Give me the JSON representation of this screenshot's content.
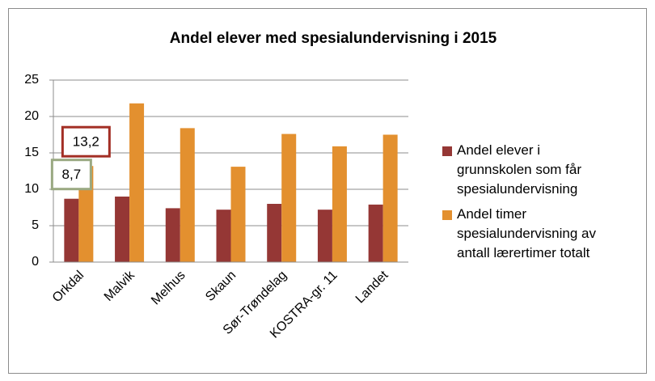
{
  "chart_data": {
    "type": "bar",
    "title": "Andel elever med spesialundervisning i 2015",
    "categories": [
      "Orkdal",
      "Malvik",
      "Melhus",
      "Skaun",
      "Sør-Trøndelag",
      "KOSTRA-gr. 11",
      "Landet"
    ],
    "series": [
      {
        "name": "Andel elever i grunnskolen som får spesialundervisning",
        "color": "#953735",
        "values": [
          8.7,
          9.0,
          7.4,
          7.2,
          8.0,
          7.2,
          7.9
        ],
        "value_labels": [
          "8,7",
          null,
          null,
          null,
          null,
          null,
          null
        ]
      },
      {
        "name": "Andel timer spesialundervisning av antall lærertimer totalt",
        "color": "#e3902f",
        "values": [
          13.2,
          21.8,
          18.4,
          13.1,
          17.6,
          15.9,
          17.5
        ],
        "value_labels": [
          "13,2",
          null,
          null,
          null,
          null,
          null,
          null
        ]
      }
    ],
    "ylim": [
      0,
      25
    ],
    "yticks": [
      0,
      5,
      10,
      15,
      20,
      25
    ],
    "grid": true,
    "legend": "right"
  }
}
